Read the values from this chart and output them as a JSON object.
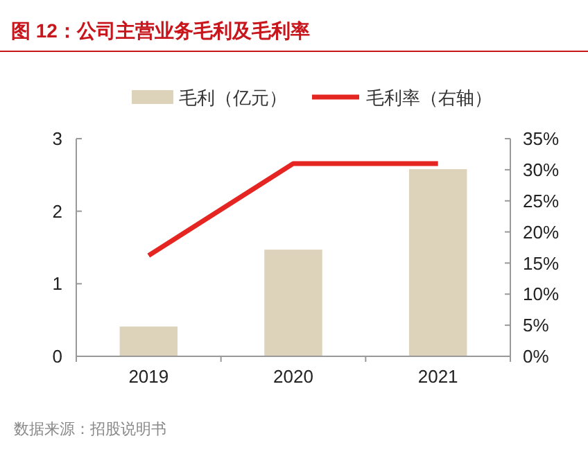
{
  "chart_data": {
    "type": "bar",
    "title": "图 12：公司主营业务毛利及毛利率",
    "categories": [
      "2019",
      "2020",
      "2021"
    ],
    "series": [
      {
        "name": "毛利（亿元）",
        "color": "#ddd3bb",
        "values": [
          0.41,
          1.47,
          2.58
        ]
      },
      {
        "name": "毛利率（右轴）",
        "type": "line",
        "axis": "y2",
        "color": "#e52521",
        "values": [
          16.2,
          31.0,
          31.0
        ]
      }
    ],
    "ylim": [
      0,
      3
    ],
    "yticks": [
      0,
      1,
      2,
      3
    ],
    "y2lim": [
      0,
      35
    ],
    "y2ticks": [
      {
        "value": 0,
        "label": "0%"
      },
      {
        "value": 5,
        "label": "5%"
      },
      {
        "value": 10,
        "label": "10%"
      },
      {
        "value": 15,
        "label": "15%"
      },
      {
        "value": 20,
        "label": "20%"
      },
      {
        "value": 25,
        "label": "25%"
      },
      {
        "value": 30,
        "label": "30%"
      },
      {
        "value": 35,
        "label": "35%"
      }
    ],
    "legend": "top",
    "annotations": [
      "数据来源：招股说明书"
    ]
  }
}
